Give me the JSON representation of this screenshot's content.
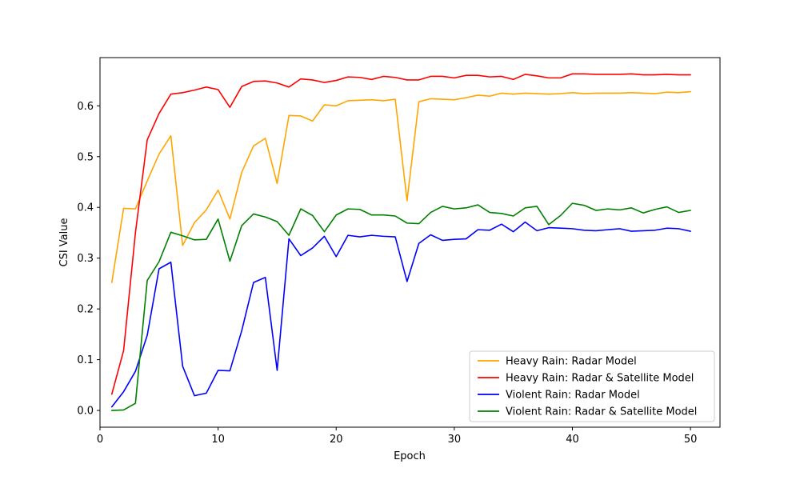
{
  "chart_data": {
    "type": "line",
    "title": "",
    "xlabel": "Epoch",
    "ylabel": "CSI Value",
    "xlim": [
      0,
      52.5
    ],
    "ylim": [
      -0.033,
      0.695
    ],
    "xticks": [
      0,
      10,
      20,
      30,
      40,
      50
    ],
    "yticks": [
      0.0,
      0.1,
      0.2,
      0.3,
      0.4,
      0.5,
      0.6
    ],
    "grid": false,
    "legend_position": "lower-right",
    "x": [
      1,
      2,
      3,
      4,
      5,
      6,
      7,
      8,
      9,
      10,
      11,
      12,
      13,
      14,
      15,
      16,
      17,
      18,
      19,
      20,
      21,
      22,
      23,
      24,
      25,
      26,
      27,
      28,
      29,
      30,
      31,
      32,
      33,
      34,
      35,
      36,
      37,
      38,
      39,
      40,
      41,
      42,
      43,
      44,
      45,
      46,
      47,
      48,
      49,
      50
    ],
    "series": [
      {
        "name": "Heavy Rain: Radar Model",
        "color": "#ffa500",
        "values": [
          0.252,
          0.398,
          0.397,
          0.452,
          0.505,
          0.541,
          0.325,
          0.37,
          0.395,
          0.434,
          0.377,
          0.469,
          0.521,
          0.536,
          0.447,
          0.581,
          0.58,
          0.57,
          0.602,
          0.6,
          0.61,
          0.611,
          0.612,
          0.61,
          0.613,
          0.413,
          0.608,
          0.614,
          0.613,
          0.612,
          0.616,
          0.621,
          0.619,
          0.625,
          0.623,
          0.625,
          0.624,
          0.623,
          0.624,
          0.626,
          0.624,
          0.625,
          0.625,
          0.625,
          0.626,
          0.625,
          0.624,
          0.627,
          0.626,
          0.628
        ]
      },
      {
        "name": "Heavy Rain: Radar & Satellite Model",
        "color": "#ff0000",
        "values": [
          0.032,
          0.118,
          0.35,
          0.533,
          0.585,
          0.623,
          0.626,
          0.631,
          0.637,
          0.632,
          0.597,
          0.638,
          0.648,
          0.649,
          0.645,
          0.637,
          0.653,
          0.651,
          0.646,
          0.65,
          0.657,
          0.656,
          0.652,
          0.658,
          0.656,
          0.651,
          0.651,
          0.658,
          0.658,
          0.655,
          0.66,
          0.66,
          0.657,
          0.658,
          0.652,
          0.662,
          0.659,
          0.655,
          0.655,
          0.663,
          0.663,
          0.662,
          0.662,
          0.662,
          0.663,
          0.661,
          0.661,
          0.662,
          0.661,
          0.661
        ]
      },
      {
        "name": "Violent Rain: Radar Model",
        "color": "#0000ff",
        "values": [
          0.007,
          0.037,
          0.077,
          0.148,
          0.279,
          0.292,
          0.087,
          0.029,
          0.034,
          0.079,
          0.078,
          0.157,
          0.252,
          0.262,
          0.079,
          0.338,
          0.305,
          0.32,
          0.343,
          0.303,
          0.345,
          0.342,
          0.345,
          0.343,
          0.342,
          0.254,
          0.329,
          0.346,
          0.335,
          0.337,
          0.338,
          0.356,
          0.355,
          0.367,
          0.352,
          0.371,
          0.354,
          0.36,
          0.359,
          0.358,
          0.355,
          0.354,
          0.356,
          0.358,
          0.353,
          0.354,
          0.355,
          0.359,
          0.358,
          0.353
        ]
      },
      {
        "name": "Violent Rain: Radar & Satellite Model",
        "color": "#008000",
        "values": [
          0.0,
          0.001,
          0.014,
          0.256,
          0.293,
          0.351,
          0.344,
          0.336,
          0.337,
          0.377,
          0.294,
          0.364,
          0.387,
          0.381,
          0.372,
          0.345,
          0.397,
          0.384,
          0.352,
          0.385,
          0.397,
          0.396,
          0.385,
          0.385,
          0.383,
          0.369,
          0.368,
          0.39,
          0.402,
          0.397,
          0.399,
          0.405,
          0.39,
          0.388,
          0.383,
          0.399,
          0.402,
          0.366,
          0.384,
          0.408,
          0.404,
          0.394,
          0.397,
          0.395,
          0.399,
          0.389,
          0.396,
          0.401,
          0.39,
          0.394
        ]
      }
    ]
  }
}
